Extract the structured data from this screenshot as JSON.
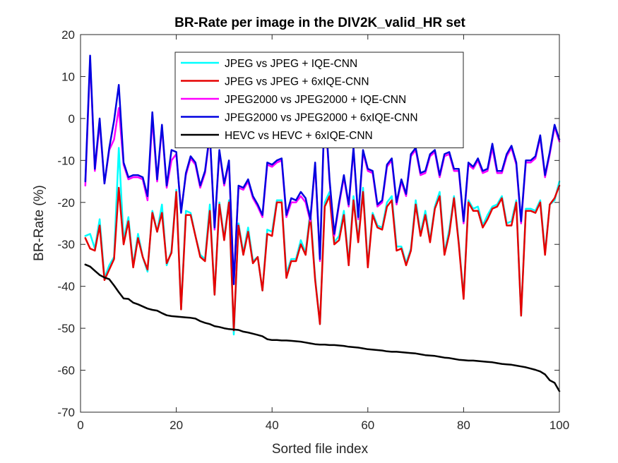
{
  "chart_data": {
    "type": "line",
    "title": "BR-Rate per image in the DIV2K_valid_HR set",
    "xlabel": "Sorted file index",
    "ylabel": "BR-Rate (%)",
    "xlim": [
      0,
      100
    ],
    "ylim": [
      -70,
      20
    ],
    "xticks": [
      "0",
      "20",
      "40",
      "60",
      "80",
      "100"
    ],
    "yticks": [
      "20",
      "10",
      "0",
      "-10",
      "-20",
      "-30",
      "-40",
      "-50",
      "-60",
      "-70"
    ],
    "grid": false,
    "legend_position": "top-center",
    "x": [
      1,
      2,
      3,
      4,
      5,
      6,
      7,
      8,
      9,
      10,
      11,
      12,
      13,
      14,
      15,
      16,
      17,
      18,
      19,
      20,
      21,
      22,
      23,
      24,
      25,
      26,
      27,
      28,
      29,
      30,
      31,
      32,
      33,
      34,
      35,
      36,
      37,
      38,
      39,
      40,
      41,
      42,
      43,
      44,
      45,
      46,
      47,
      48,
      49,
      50,
      51,
      52,
      53,
      54,
      55,
      56,
      57,
      58,
      59,
      60,
      61,
      62,
      63,
      64,
      65,
      66,
      67,
      68,
      69,
      70,
      71,
      72,
      73,
      74,
      75,
      76,
      77,
      78,
      79,
      80,
      81,
      82,
      83,
      84,
      85,
      86,
      87,
      88,
      89,
      90,
      91,
      92,
      93,
      94,
      95,
      96,
      97,
      98,
      99,
      100
    ],
    "series": [
      {
        "name": "JPEG vs JPEG + IQE-CNN",
        "color": "#00FFFF",
        "values": [
          -28,
          -27.5,
          -31,
          -24,
          -38,
          -35,
          -33,
          -7,
          -29,
          -23.5,
          -35,
          -27.5,
          -33,
          -36.5,
          -22,
          -27,
          -20.5,
          -35,
          -31.5,
          -17,
          -45.5,
          -22,
          -22.5,
          -28,
          -32.5,
          -33.5,
          -20.5,
          -42,
          -20,
          -28.5,
          -19.5,
          -51.5,
          -25,
          -32,
          -26,
          -34,
          -33,
          -41,
          -26.5,
          -27,
          -19.5,
          -19.5,
          -37,
          -33.5,
          -33.5,
          -29,
          -32,
          -22,
          -38,
          -49,
          -20,
          -17.5,
          -29.5,
          -28,
          -22,
          -34.5,
          -18.5,
          -29,
          -16.5,
          -35,
          -22.5,
          -25.5,
          -26,
          -20,
          -18.5,
          -30.5,
          -30.5,
          -34.5,
          -31,
          -19.5,
          -27.5,
          -22,
          -29,
          -21,
          -17.5,
          -32,
          -26.5,
          -18.5,
          -29.5,
          -42.5,
          -19.5,
          -21.5,
          -21,
          -25.5,
          -23,
          -21,
          -20.5,
          -18.5,
          -25,
          -24.5,
          -19.5,
          -47,
          -21.5,
          -21.5,
          -22,
          -19.5,
          -32,
          -20.5,
          -19.5,
          -15
        ]
      },
      {
        "name": "JPEG vs JPEG +  6xIQE-CNN",
        "color": "#E60000",
        "values": [
          -28.5,
          -31,
          -31.5,
          -25.5,
          -38.5,
          -36,
          -33.5,
          -16.5,
          -30,
          -24.5,
          -35.5,
          -28.5,
          -33,
          -36,
          -22.5,
          -27,
          -22.5,
          -34.5,
          -32,
          -17.5,
          -45.5,
          -23,
          -23,
          -28,
          -33,
          -34,
          -22,
          -42,
          -20.5,
          -29,
          -20,
          -50.5,
          -25.5,
          -32.5,
          -27,
          -34.5,
          -33,
          -41,
          -27.5,
          -28,
          -20,
          -20,
          -38,
          -34,
          -34,
          -30,
          -32.5,
          -23,
          -38.5,
          -49,
          -21,
          -18.5,
          -30,
          -29,
          -23,
          -35,
          -19.5,
          -29.5,
          -17.5,
          -35.5,
          -23,
          -26,
          -26.5,
          -21,
          -19.5,
          -31.5,
          -31,
          -35,
          -31.5,
          -20.5,
          -28,
          -23,
          -29.5,
          -21.5,
          -18.5,
          -32.5,
          -27.5,
          -19,
          -30,
          -43,
          -20,
          -22,
          -22,
          -26,
          -24,
          -21.5,
          -21,
          -19,
          -25.5,
          -25.5,
          -20,
          -47,
          -22,
          -22,
          -22.5,
          -20,
          -32.5,
          -20.5,
          -19,
          -16
        ]
      },
      {
        "name": "JPEG2000 vs JPEG2000 + IQE-CNN",
        "color": "#FF00FF",
        "values": [
          -16,
          14,
          -12.5,
          -1,
          -15.5,
          -7.5,
          -5,
          2.5,
          -11,
          -14.5,
          -14,
          -14,
          -14.5,
          -19.5,
          0,
          -15,
          -2,
          -16.5,
          -10,
          -8.5,
          -22,
          -13.5,
          -9.5,
          -11,
          -16.5,
          -13,
          -4,
          -26.5,
          -8,
          -16,
          -10.5,
          -39,
          -16.5,
          -17,
          -15,
          -19,
          -21,
          -23.5,
          -11,
          -11.5,
          -10.5,
          -10,
          -23.5,
          -20,
          -20,
          -18.5,
          -20,
          -24.5,
          -11,
          -34,
          3,
          -15,
          -28,
          -20.5,
          -14,
          -21,
          -7.5,
          -24,
          -8,
          -12.5,
          -13,
          -21,
          -20,
          -11.5,
          -10,
          -20.5,
          -15,
          -18.5,
          -9,
          -7.5,
          -13.5,
          -13,
          -9,
          -8,
          -14,
          -9,
          -8.5,
          -12.5,
          -12.5,
          -25,
          -11,
          -12,
          -10,
          -13,
          -12.5,
          -7,
          -13,
          -13,
          -9,
          -7,
          -11,
          -25,
          -10.5,
          -10.5,
          -9.5,
          -4.5,
          -14,
          -8.5,
          -2,
          -5.5
        ]
      },
      {
        "name": "JPEG2000 vs JPEG2000 + 6xIQE-CNN",
        "color": "#0000E0",
        "values": [
          -15,
          15,
          -12,
          0,
          -15.5,
          -7,
          -0.5,
          8,
          -10.5,
          -14,
          -13.5,
          -13.5,
          -14,
          -18.5,
          1.5,
          -14.5,
          -1.5,
          -16,
          -7.5,
          -8,
          -22.5,
          -13,
          -9,
          -10.5,
          -16,
          -12.5,
          -3.5,
          -26,
          -7.5,
          -15.5,
          -10,
          -39.5,
          -16,
          -16.5,
          -14.5,
          -18.5,
          -20.5,
          -23,
          -10.5,
          -11,
          -10,
          -9.5,
          -23,
          -19,
          -19.5,
          -17.5,
          -19,
          -24,
          -10.5,
          -33.5,
          4,
          -14.5,
          -27.5,
          -20,
          -13.5,
          -20.5,
          -7,
          -23.5,
          -7.5,
          -12,
          -12.5,
          -20.5,
          -19.5,
          -11,
          -9.5,
          -20,
          -14.5,
          -18,
          -8.5,
          -7,
          -13,
          -12.5,
          -8.5,
          -7.5,
          -13.5,
          -8.5,
          -8,
          -12,
          -12,
          -24.5,
          -10.5,
          -11.5,
          -9.5,
          -12.5,
          -12,
          -6,
          -12.5,
          -12.5,
          -8.5,
          -6.5,
          -10.5,
          -24.5,
          -10,
          -10,
          -9,
          -4,
          -13.5,
          -8,
          -1.5,
          -5
        ]
      },
      {
        "name": "HEVC vs HEVC + 6xIQE-CNN",
        "color": "#000000",
        "values": [
          -34.8,
          -35.3,
          -36.3,
          -37.3,
          -37.9,
          -38.3,
          -39.8,
          -41.4,
          -42.9,
          -43,
          -43.9,
          -44.3,
          -44.8,
          -45.3,
          -45.6,
          -45.8,
          -46.4,
          -46.9,
          -47.1,
          -47.2,
          -47.3,
          -47.4,
          -47.5,
          -47.7,
          -48.3,
          -48.7,
          -49,
          -49.5,
          -49.7,
          -50,
          -50.2,
          -50.3,
          -50.4,
          -50.8,
          -51,
          -51.3,
          -51.6,
          -51.9,
          -52.6,
          -52.8,
          -52.8,
          -52.9,
          -52.9,
          -53,
          -53.1,
          -53.2,
          -53.4,
          -53.6,
          -53.8,
          -53.9,
          -53.9,
          -54,
          -54,
          -54.1,
          -54.2,
          -54.4,
          -54.5,
          -54.6,
          -54.8,
          -55,
          -55.1,
          -55.2,
          -55.3,
          -55.5,
          -55.6,
          -55.6,
          -55.7,
          -55.8,
          -55.9,
          -56,
          -56.2,
          -56.4,
          -56.5,
          -56.6,
          -56.8,
          -57,
          -57.1,
          -57.3,
          -57.5,
          -57.6,
          -57.7,
          -57.7,
          -57.8,
          -57.9,
          -58,
          -58.1,
          -58.3,
          -58.5,
          -58.6,
          -58.7,
          -58.9,
          -59.1,
          -59.3,
          -59.6,
          -59.9,
          -60.3,
          -61,
          -62.4,
          -63,
          -65
        ]
      }
    ]
  }
}
